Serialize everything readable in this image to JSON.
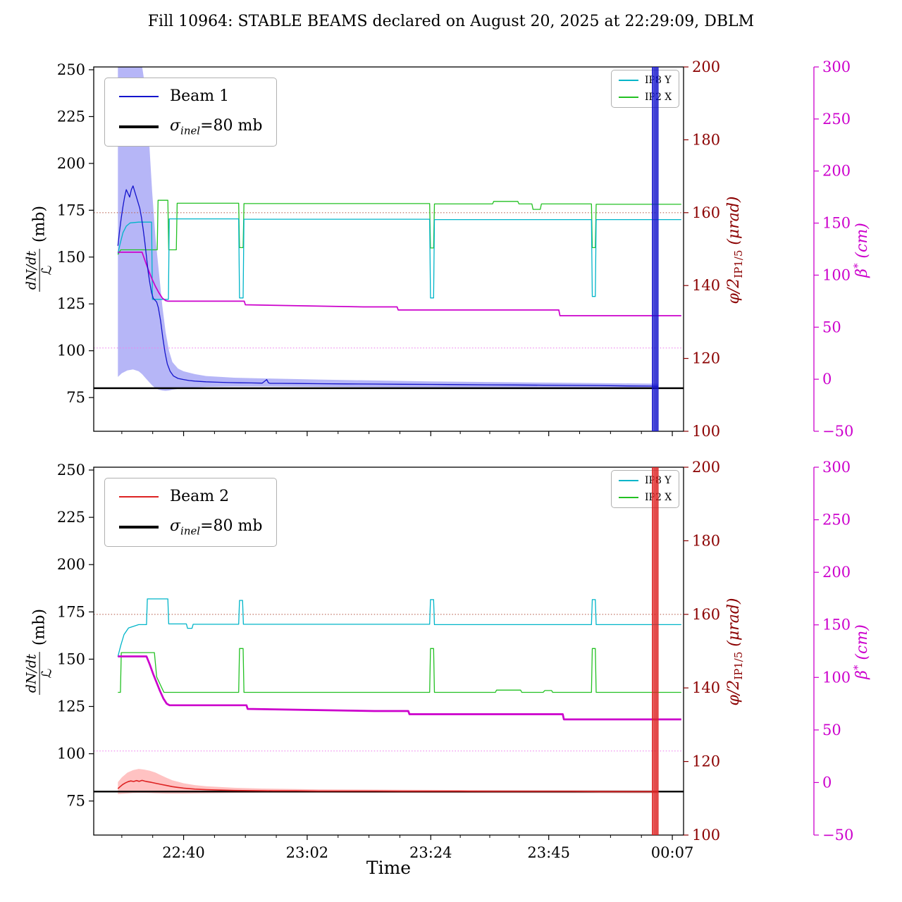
{
  "title": "Fill 10964: STABLE BEAMS declared on August 20, 2025 at 22:29:09, DBLM",
  "colors": {
    "beam1": "#1414cc",
    "beam1_band": "#9d9df4",
    "beam2": "#dd2222",
    "beam2_band": "#ffadad",
    "ip8": "#00b5c9",
    "ip2": "#23c123",
    "beta": "#cc00cc",
    "angle_axis": "#8b0000",
    "beta_axis": "#cc00cc",
    "angle_ref": "#bb6655",
    "beta_ref": "#ee82ee",
    "sigma": "#000000"
  },
  "axes_labels": {
    "time": "Time",
    "rate_numerator": "dN/dt",
    "rate_denominator": "ℒ",
    "rate_unit": "(mb)",
    "angle_main": "φ/2",
    "angle_sub": "IP1/5",
    "angle_unit": " (μrad)",
    "beta_main": "β",
    "beta_sup": "*",
    "beta_unit": " (cm)"
  },
  "legends": {
    "beam1_label": "Beam 1",
    "beam2_label": "Beam 2",
    "sigma_prefix": "σ",
    "sigma_sub": "inel",
    "sigma_rest": "=80 mb",
    "ip8_label": "IP8 Y",
    "ip2_label": "IP2 X"
  },
  "chart_data": [
    {
      "type": "line",
      "panel": "beam1",
      "x_axis": {
        "label": "Time",
        "lim": [
          0,
          105
        ],
        "ticks": [
          {
            "t": 16,
            "label": "22:40"
          },
          {
            "t": 38,
            "label": "23:02"
          },
          {
            "t": 60,
            "label": "23:24"
          },
          {
            "t": 81,
            "label": "23:45"
          },
          {
            "t": 103,
            "label": "00:07"
          }
        ]
      },
      "rate_axis": {
        "unit": "mb",
        "lim": [
          57,
          251.5
        ],
        "ticks": [
          75,
          100,
          125,
          150,
          175,
          200,
          225,
          250
        ]
      },
      "angle_axis": {
        "unit": "μrad",
        "lim": [
          100,
          200
        ],
        "ticks": [
          100,
          120,
          140,
          160,
          180,
          200
        ]
      },
      "beta_axis": {
        "unit": "cm",
        "lim": [
          -50,
          300
        ],
        "ticks": [
          -50,
          0,
          50,
          100,
          150,
          200,
          250,
          300
        ]
      },
      "reference_lines": {
        "sigma_inel_mb": 80,
        "crossing_angle_urad": 160,
        "beta_star_cm": 30
      },
      "event_band_time": [
        99.35,
        100.6
      ],
      "event_lines": [
        99.5,
        99.8,
        100.1,
        100.4
      ],
      "series": {
        "beam": {
          "name": "Beam 1",
          "axis": "rate",
          "x": [
            4.3,
            4.6,
            4.9,
            5.2,
            5.5,
            5.8,
            6.1,
            6.4,
            6.7,
            7.0,
            7.3,
            7.6,
            7.9,
            8.2,
            8.5,
            8.8,
            9.1,
            9.4,
            9.7,
            10.0,
            10.3,
            10.6,
            10.9,
            11.2,
            11.5,
            11.9,
            12.3,
            12.7,
            13.1,
            13.6,
            14.2,
            15,
            16,
            17,
            18,
            20,
            22,
            24,
            26,
            28,
            30,
            30.8,
            31.1,
            31.4,
            33,
            36,
            40,
            45,
            50,
            55,
            60,
            65,
            70,
            75,
            80,
            85,
            90,
            95,
            99,
            100.5
          ],
          "y": [
            156,
            164,
            171,
            177,
            182,
            186,
            184,
            182,
            186,
            188,
            185,
            182,
            179,
            176,
            171,
            165,
            158,
            150,
            142,
            136,
            131,
            128,
            127,
            126,
            123,
            116,
            107,
            99,
            93,
            89,
            86.5,
            85.2,
            84.6,
            84.1,
            83.8,
            83.4,
            83.2,
            83.0,
            82.9,
            82.8,
            82.7,
            84.6,
            82.9,
            82.6,
            82.6,
            82.5,
            82.4,
            82.3,
            82.2,
            82.1,
            82.0,
            81.9,
            81.8,
            81.7,
            81.6,
            81.5,
            81.4,
            81.2,
            81.1,
            81.0
          ]
        },
        "beam_band": {
          "name": "Beam 1 uncertainty",
          "axis": "rate",
          "x": [
            4.3,
            5,
            6,
            7,
            8,
            8.6,
            9.2,
            9.8,
            10.4,
            11,
            11.6,
            12.2,
            12.8,
            13.4,
            14,
            15,
            16,
            18,
            20,
            25,
            30,
            40,
            60,
            80,
            100.5
          ],
          "hi": [
            252,
            256,
            256,
            256,
            256,
            252,
            240,
            215,
            185,
            160,
            142,
            124,
            110,
            100,
            94,
            90.5,
            89,
            87.5,
            86.5,
            85.6,
            85.2,
            84.6,
            83.6,
            83.0,
            82.4
          ],
          "lo": [
            86,
            88,
            89.5,
            90,
            89,
            87.5,
            85.5,
            83.5,
            81.5,
            80,
            79.2,
            78.8,
            78.6,
            78.8,
            79.2,
            79.6,
            80.0,
            80.4,
            80.7,
            80.9,
            80.9,
            80.7,
            80.4,
            80.1,
            79.9
          ]
        },
        "ip8y": {
          "name": "IP8 Y",
          "axis": "angle",
          "x": [
            4.3,
            4.7,
            5.2,
            5.8,
            6.5,
            8,
            10.3,
            10.45,
            13.3,
            13.45,
            25.8,
            25.95,
            26.6,
            26.75,
            59.8,
            59.95,
            60.5,
            60.65,
            88.6,
            88.75,
            89.3,
            89.45,
            104.6
          ],
          "y": [
            148.8,
            151.5,
            154.5,
            156.3,
            157.2,
            157.4,
            157.4,
            136.2,
            136.2,
            158.3,
            158.3,
            136.6,
            136.6,
            158.2,
            158.2,
            136.6,
            136.6,
            158.1,
            158.1,
            137.0,
            137.0,
            158.1,
            158.1
          ]
        },
        "ip2x": {
          "name": "IP2 X",
          "axis": "angle",
          "x": [
            4.3,
            4.8,
            11.3,
            11.45,
            13.2,
            13.35,
            14.7,
            14.85,
            25.8,
            25.95,
            26.6,
            26.75,
            59.8,
            59.95,
            60.5,
            60.65,
            71,
            71.2,
            75.5,
            75.7,
            78,
            78.2,
            79.5,
            79.7,
            88.6,
            88.75,
            89.3,
            89.45,
            104.6
          ],
          "y": [
            148.5,
            149.8,
            149.8,
            163.4,
            163.4,
            149.8,
            149.8,
            162.6,
            162.6,
            150.4,
            150.4,
            162.5,
            162.5,
            150.3,
            150.3,
            162.4,
            162.4,
            163.1,
            163.1,
            162.4,
            162.4,
            160.9,
            160.9,
            162.4,
            162.4,
            150.4,
            150.4,
            162.3,
            162.3
          ]
        },
        "beta_star": {
          "name": "β*",
          "axis": "beta",
          "x": [
            4.3,
            8.6,
            9.2,
            9.8,
            10.4,
            11,
            11.6,
            12.2,
            12.8,
            13.2,
            26.8,
            27.0,
            48,
            54,
            54.2,
            82.8,
            83.0,
            104.6
          ],
          "y": [
            122,
            122,
            113,
            104,
            96,
            89,
            83,
            78,
            75.5,
            75,
            75,
            71.5,
            69.5,
            69.5,
            66.5,
            66.5,
            61,
            61
          ]
        }
      }
    },
    {
      "type": "line",
      "panel": "beam2",
      "x_axis": {
        "label": "Time",
        "lim": [
          0,
          105
        ],
        "ticks": [
          {
            "t": 16,
            "label": "22:40"
          },
          {
            "t": 38,
            "label": "23:02"
          },
          {
            "t": 60,
            "label": "23:24"
          },
          {
            "t": 81,
            "label": "23:45"
          },
          {
            "t": 103,
            "label": "00:07"
          }
        ]
      },
      "rate_axis": {
        "unit": "mb",
        "lim": [
          57,
          251.5
        ],
        "ticks": [
          75,
          100,
          125,
          150,
          175,
          200,
          225,
          250
        ]
      },
      "angle_axis": {
        "unit": "μrad",
        "lim": [
          100,
          200
        ],
        "ticks": [
          100,
          120,
          140,
          160,
          180,
          200
        ]
      },
      "beta_axis": {
        "unit": "cm",
        "lim": [
          -50,
          300
        ],
        "ticks": [
          -50,
          0,
          50,
          100,
          150,
          200,
          250,
          300
        ]
      },
      "reference_lines": {
        "sigma_inel_mb": 80,
        "crossing_angle_urad": 160,
        "beta_star_cm": 30
      },
      "event_band_time": [
        99.35,
        100.6
      ],
      "event_lines": [
        99.5,
        99.8,
        100.1,
        100.4
      ],
      "series": {
        "beam": {
          "name": "Beam 2",
          "axis": "rate",
          "x": [
            4.3,
            4.7,
            5.1,
            5.6,
            6.1,
            6.6,
            7.1,
            7.6,
            8.1,
            8.6,
            9.1,
            9.6,
            10.2,
            11,
            12,
            13,
            14,
            15,
            16,
            18,
            20,
            22,
            25,
            28,
            32,
            36,
            40,
            45,
            50,
            55,
            60,
            65,
            70,
            75,
            80,
            85,
            90,
            95,
            99,
            100.5
          ],
          "y": [
            81.5,
            82.6,
            83.6,
            84.5,
            85.2,
            85.6,
            85.3,
            85.8,
            85.4,
            85.9,
            85.5,
            85.2,
            84.9,
            84.4,
            83.8,
            83.2,
            82.6,
            82.2,
            81.8,
            81.3,
            81.0,
            80.8,
            80.6,
            80.5,
            80.4,
            80.4,
            80.3,
            80.3,
            80.3,
            80.2,
            80.2,
            80.2,
            80.1,
            80.1,
            80.1,
            80.1,
            80.0,
            80.0,
            80.0,
            80.0
          ]
        },
        "beam_band": {
          "name": "Beam 2 uncertainty",
          "axis": "rate",
          "x": [
            4.3,
            5,
            6,
            7,
            8,
            9,
            10,
            11,
            12,
            13,
            14,
            16,
            18,
            20,
            25,
            30,
            40,
            60,
            80,
            100.5
          ],
          "hi": [
            85,
            87.5,
            90,
            91.3,
            92,
            91.6,
            91,
            90,
            88.6,
            87.2,
            86,
            84.4,
            83.4,
            82.8,
            82.0,
            81.6,
            81.2,
            80.9,
            80.7,
            80.5
          ],
          "lo": [
            78.6,
            78.8,
            79.0,
            79.2,
            79.3,
            79.3,
            79.2,
            79.1,
            79.0,
            78.9,
            78.9,
            78.9,
            79.0,
            79.1,
            79.3,
            79.4,
            79.4,
            79.3,
            79.2,
            79.1
          ]
        },
        "ip8y": {
          "name": "IP8 Y",
          "axis": "angle",
          "x": [
            4.3,
            4.8,
            5.4,
            6.2,
            8,
            9.4,
            9.55,
            13.2,
            13.35,
            16.5,
            16.7,
            17.5,
            17.7,
            25.8,
            25.95,
            26.5,
            26.65,
            59.8,
            59.95,
            60.5,
            60.65,
            88.6,
            88.75,
            89.3,
            89.45,
            104.6
          ],
          "y": [
            148.5,
            151.5,
            154.5,
            156.3,
            157.2,
            157.2,
            164.2,
            164.2,
            157.4,
            157.4,
            156.2,
            156.2,
            157.3,
            157.3,
            163.8,
            163.8,
            157.3,
            157.3,
            164.0,
            164.0,
            157.2,
            157.2,
            164.0,
            164.0,
            157.2,
            157.2
          ]
        },
        "ip2x": {
          "name": "IP2 X",
          "axis": "angle",
          "x": [
            4.3,
            4.75,
            4.9,
            10.8,
            11.2,
            12.5,
            25.8,
            25.95,
            26.6,
            26.75,
            59.8,
            59.95,
            60.5,
            60.65,
            71.5,
            71.7,
            76,
            76.2,
            80,
            80.3,
            81.5,
            81.7,
            88.6,
            88.75,
            89.3,
            89.45,
            104.6
          ],
          "y": [
            138.8,
            138.8,
            149.6,
            149.6,
            143,
            138.8,
            138.8,
            150.7,
            150.7,
            138.8,
            138.8,
            150.7,
            150.7,
            138.8,
            138.8,
            139.4,
            139.4,
            138.8,
            138.8,
            139.3,
            139.3,
            138.8,
            138.8,
            150.7,
            150.7,
            138.8,
            138.8
          ]
        },
        "beta_star": {
          "name": "β*",
          "axis": "beta",
          "x": [
            4.3,
            9.4,
            10,
            10.6,
            11.2,
            11.8,
            12.4,
            13,
            13.5,
            27.2,
            27.4,
            50,
            56,
            56.2,
            83.5,
            83.7,
            104.6
          ],
          "y": [
            120,
            120,
            112,
            103,
            95,
            87,
            80,
            75,
            73.5,
            73.5,
            70,
            68,
            68,
            65,
            65,
            60,
            60
          ]
        }
      }
    }
  ]
}
